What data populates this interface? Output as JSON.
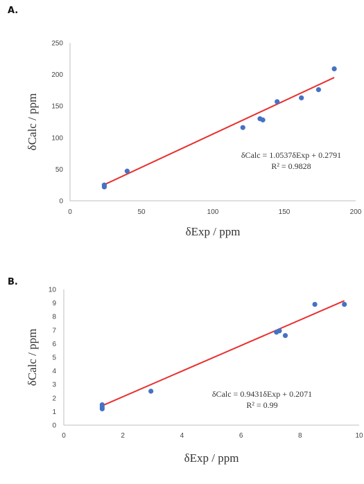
{
  "panels": [
    {
      "label": "A."
    },
    {
      "label": "B."
    }
  ],
  "chart_data": [
    {
      "type": "scatter",
      "title": "",
      "xlabel": "δExp / ppm",
      "ylabel": "δCalc / ppm",
      "xlim": [
        0,
        200
      ],
      "ylim": [
        0,
        250
      ],
      "x_ticks": [
        "0",
        "50",
        "100",
        "150",
        "200"
      ],
      "y_ticks": [
        "0",
        "50",
        "100",
        "150",
        "200",
        "250"
      ],
      "grid": false,
      "series": [
        {
          "color": "#4472c4",
          "points": [
            {
              "x": 24,
              "y": 22
            },
            {
              "x": 24,
              "y": 25
            },
            {
              "x": 40,
              "y": 47
            },
            {
              "x": 121,
              "y": 116
            },
            {
              "x": 133,
              "y": 130
            },
            {
              "x": 135,
              "y": 128
            },
            {
              "x": 145,
              "y": 157
            },
            {
              "x": 162,
              "y": 163
            },
            {
              "x": 174,
              "y": 176
            },
            {
              "x": 185,
              "y": 209
            }
          ]
        }
      ],
      "trendline": {
        "color": "#e8302e",
        "slope": 1.0537,
        "intercept": 0.2791,
        "x_range": [
          24,
          185
        ]
      },
      "equation": "δCalc = 1.0537δExp + 0.2791",
      "r2": "R² = 0.9828"
    },
    {
      "type": "scatter",
      "title": "",
      "xlabel": "δExp / ppm",
      "ylabel": "δCalc / ppm",
      "xlim": [
        0,
        10
      ],
      "ylim": [
        0,
        10
      ],
      "x_ticks": [
        "0",
        "2",
        "4",
        "6",
        "8",
        "10"
      ],
      "y_ticks": [
        "0",
        "1",
        "2",
        "3",
        "4",
        "5",
        "6",
        "7",
        "8",
        "9",
        "10"
      ],
      "grid": false,
      "series": [
        {
          "color": "#4472c4",
          "points": [
            {
              "x": 1.3,
              "y": 1.2
            },
            {
              "x": 1.3,
              "y": 1.35
            },
            {
              "x": 1.3,
              "y": 1.5
            },
            {
              "x": 2.95,
              "y": 2.5
            },
            {
              "x": 7.2,
              "y": 6.85
            },
            {
              "x": 7.3,
              "y": 6.95
            },
            {
              "x": 7.5,
              "y": 6.6
            },
            {
              "x": 8.5,
              "y": 8.9
            },
            {
              "x": 9.5,
              "y": 8.9
            }
          ]
        }
      ],
      "trendline": {
        "color": "#e8302e",
        "slope": 0.9431,
        "intercept": 0.2071,
        "x_range": [
          1.3,
          9.5
        ]
      },
      "equation": "δCalc = 0.9431δExp + 0.2071",
      "r2": "R² = 0.99"
    }
  ]
}
